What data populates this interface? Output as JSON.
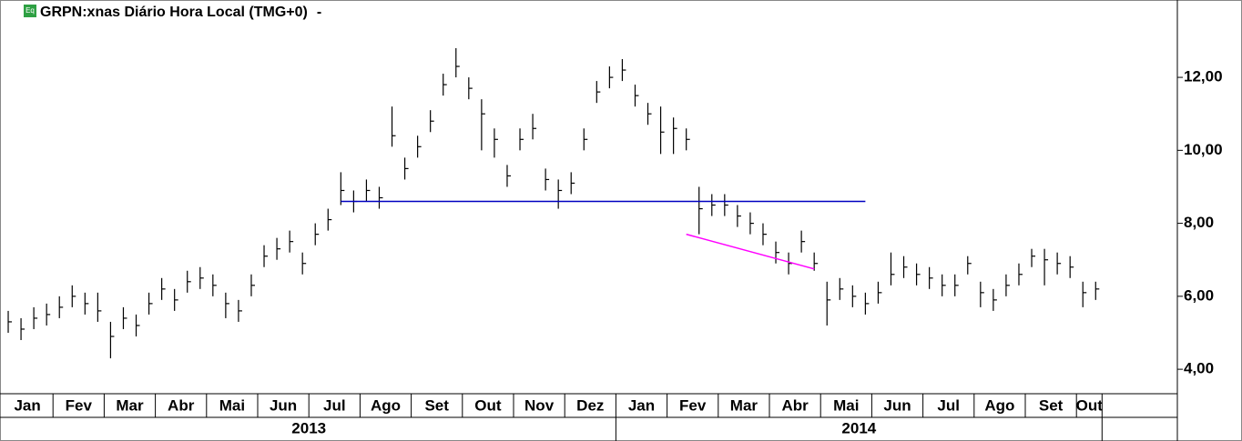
{
  "chart_data": {
    "type": "ohlc",
    "title": "GRPN:xnas Diário Hora Local (TMG+0)",
    "title_suffix": "-",
    "icon_text": "Eq",
    "color": "#000000",
    "months": [
      "Jan",
      "Jan",
      "Jan",
      "Jan",
      "Fev",
      "Fev",
      "Fev",
      "Fev",
      "Mar",
      "Mar",
      "Mar",
      "Mar",
      "Abr",
      "Abr",
      "Abr",
      "Abr",
      "Mai",
      "Mai",
      "Mai",
      "Mai",
      "Jun",
      "Jun",
      "Jun",
      "Jun",
      "Jul",
      "Jul",
      "Jul",
      "Jul",
      "Ago",
      "Ago",
      "Ago",
      "Ago",
      "Set",
      "Set",
      "Set",
      "Set",
      "Out",
      "Out",
      "Out",
      "Out",
      "Nov",
      "Nov",
      "Nov",
      "Nov",
      "Dez",
      "Dez",
      "Dez",
      "Dez",
      "Jan",
      "Jan",
      "Jan",
      "Jan",
      "Fev",
      "Fev",
      "Fev",
      "Fev",
      "Mar",
      "Mar",
      "Mar",
      "Mar",
      "Abr",
      "Abr",
      "Abr",
      "Abr",
      "Mai",
      "Mai",
      "Mai",
      "Mai",
      "Jun",
      "Jun",
      "Jun",
      "Jun",
      "Jul",
      "Jul",
      "Jul",
      "Jul",
      "Ago",
      "Ago",
      "Ago",
      "Ago",
      "Set",
      "Set",
      "Set",
      "Set",
      "Out",
      "Out"
    ],
    "years": [
      "2013",
      "2013",
      "2013",
      "2013",
      "2013",
      "2013",
      "2013",
      "2013",
      "2013",
      "2013",
      "2013",
      "2013",
      "2013",
      "2013",
      "2013",
      "2013",
      "2013",
      "2013",
      "2013",
      "2013",
      "2013",
      "2013",
      "2013",
      "2013",
      "2013",
      "2013",
      "2013",
      "2013",
      "2013",
      "2013",
      "2013",
      "2013",
      "2013",
      "2013",
      "2013",
      "2013",
      "2013",
      "2013",
      "2013",
      "2013",
      "2013",
      "2013",
      "2013",
      "2013",
      "2013",
      "2013",
      "2013",
      "2013",
      "2014",
      "2014",
      "2014",
      "2014",
      "2014",
      "2014",
      "2014",
      "2014",
      "2014",
      "2014",
      "2014",
      "2014",
      "2014",
      "2014",
      "2014",
      "2014",
      "2014",
      "2014",
      "2014",
      "2014",
      "2014",
      "2014",
      "2014",
      "2014",
      "2014",
      "2014",
      "2014",
      "2014",
      "2014",
      "2014",
      "2014",
      "2014",
      "2014",
      "2014",
      "2014",
      "2014",
      "2014",
      "2014"
    ],
    "high": [
      5.6,
      5.4,
      5.7,
      5.8,
      6.0,
      6.3,
      6.1,
      6.1,
      5.3,
      5.7,
      5.5,
      6.1,
      6.5,
      6.2,
      6.7,
      6.8,
      6.6,
      6.1,
      5.9,
      6.6,
      7.4,
      7.6,
      7.8,
      7.2,
      8.0,
      8.4,
      9.4,
      8.9,
      9.2,
      9.0,
      11.2,
      9.8,
      10.4,
      11.1,
      12.1,
      12.8,
      12.0,
      11.4,
      10.6,
      9.6,
      10.6,
      11.0,
      9.5,
      9.2,
      9.4,
      10.6,
      11.9,
      12.3,
      12.5,
      11.8,
      11.3,
      11.2,
      10.9,
      10.6,
      9.0,
      8.8,
      8.8,
      8.5,
      8.3,
      8.0,
      7.5,
      7.2,
      7.8,
      7.2,
      6.4,
      6.5,
      6.3,
      6.1,
      6.4,
      7.2,
      7.1,
      6.9,
      6.8,
      6.6,
      6.6,
      7.1,
      6.4,
      6.2,
      6.6,
      6.9,
      7.3,
      7.3,
      7.2,
      7.1,
      6.4,
      6.4
    ],
    "low": [
      5.0,
      4.8,
      5.1,
      5.2,
      5.4,
      5.7,
      5.5,
      5.3,
      4.3,
      5.1,
      4.9,
      5.5,
      5.9,
      5.6,
      6.1,
      6.2,
      6.0,
      5.4,
      5.3,
      6.0,
      6.8,
      7.0,
      7.2,
      6.6,
      7.4,
      7.8,
      8.5,
      8.3,
      8.6,
      8.4,
      10.1,
      9.2,
      9.8,
      10.5,
      11.5,
      12.0,
      11.4,
      10.0,
      9.8,
      9.0,
      10.0,
      10.3,
      8.9,
      8.4,
      8.8,
      10.0,
      11.3,
      11.7,
      11.9,
      11.2,
      10.7,
      9.9,
      9.9,
      10.0,
      7.7,
      8.2,
      8.2,
      7.9,
      7.7,
      7.4,
      6.9,
      6.6,
      7.2,
      6.7,
      5.2,
      5.9,
      5.7,
      5.5,
      5.8,
      6.3,
      6.5,
      6.3,
      6.2,
      6.0,
      6.0,
      6.6,
      5.7,
      5.6,
      6.0,
      6.3,
      6.8,
      6.3,
      6.6,
      6.5,
      5.7,
      5.9
    ],
    "close": [
      5.3,
      5.1,
      5.4,
      5.5,
      5.7,
      6.0,
      5.8,
      5.6,
      4.9,
      5.4,
      5.2,
      5.8,
      6.2,
      5.9,
      6.4,
      6.5,
      6.3,
      5.8,
      5.6,
      6.3,
      7.1,
      7.3,
      7.5,
      6.9,
      7.7,
      8.1,
      8.9,
      8.6,
      8.9,
      8.7,
      10.4,
      9.5,
      10.1,
      10.8,
      11.8,
      12.3,
      11.7,
      11.0,
      10.3,
      9.3,
      10.3,
      10.6,
      9.2,
      8.9,
      9.1,
      10.3,
      11.6,
      12.0,
      12.2,
      11.5,
      11.0,
      10.5,
      10.6,
      10.3,
      8.4,
      8.5,
      8.5,
      8.2,
      8.0,
      7.7,
      7.2,
      6.9,
      7.5,
      6.9,
      5.9,
      6.2,
      6.0,
      5.8,
      6.1,
      6.6,
      6.8,
      6.6,
      6.5,
      6.3,
      6.3,
      6.9,
      6.1,
      5.9,
      6.3,
      6.6,
      7.1,
      7.0,
      6.9,
      6.8,
      6.1,
      6.2
    ],
    "lines": [
      {
        "color": "#0000c0",
        "x": [
          26,
          67
        ],
        "y": [
          8.6,
          8.6
        ]
      },
      {
        "color": "#ff00ff",
        "x": [
          53,
          63
        ],
        "y": [
          7.7,
          6.75
        ]
      }
    ],
    "ylim": [
      3.33,
      14.12
    ],
    "yticks": [
      {
        "value": 4,
        "label": "4,00"
      },
      {
        "value": 6,
        "label": "6,00"
      },
      {
        "value": 8,
        "label": "8,00"
      },
      {
        "value": 10,
        "label": "10,00"
      },
      {
        "value": 12,
        "label": "12,00"
      }
    ]
  }
}
